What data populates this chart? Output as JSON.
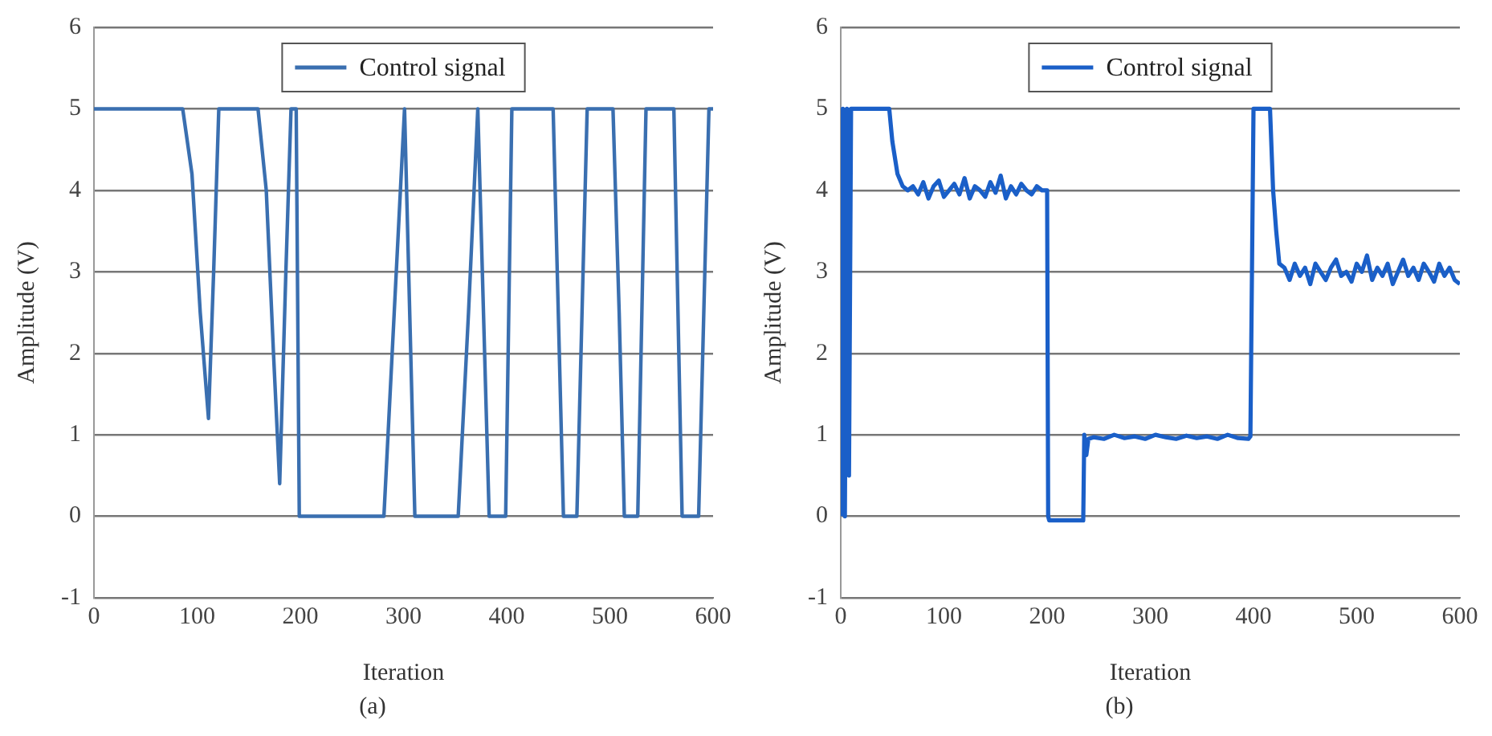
{
  "chart_data": [
    {
      "type": "line",
      "xlabel": "Iteration",
      "ylabel": "Amplitude (V)",
      "annotations": [
        "(a)"
      ],
      "x": [
        0,
        86,
        95,
        103,
        111,
        116,
        121,
        159,
        167,
        174,
        180,
        186,
        191,
        196,
        199,
        281,
        291,
        301,
        311,
        353,
        363,
        372,
        383,
        399,
        405,
        445,
        450,
        455,
        468,
        473,
        478,
        503,
        509,
        514,
        527,
        531,
        535,
        562,
        566,
        570,
        586,
        591,
        596,
        600
      ],
      "series": [
        {
          "name": "Control signal",
          "color": "#3a6fb0",
          "values": [
            5,
            5,
            4.2,
            2.5,
            1.2,
            3.0,
            5,
            5,
            4.0,
            2.0,
            0.4,
            3.0,
            5,
            5,
            0,
            0,
            2.5,
            5,
            0,
            0,
            2.5,
            5,
            0,
            0,
            5,
            5,
            2.5,
            0,
            0,
            2.5,
            5,
            5,
            2.5,
            0,
            0,
            2.5,
            5,
            5,
            2.5,
            0,
            0,
            2.5,
            5,
            5
          ]
        }
      ],
      "xlim": [
        0,
        600
      ],
      "xticks": [
        0,
        100,
        200,
        300,
        400,
        500,
        600
      ],
      "ylim": [
        -1,
        6
      ],
      "yticks": [
        -1,
        0,
        1,
        2,
        3,
        4,
        5,
        6
      ],
      "grid": "y",
      "legend": "top"
    },
    {
      "type": "line",
      "xlabel": "Iteration",
      "ylabel": "Amplitude (V)",
      "annotations": [
        "(b)"
      ],
      "x": [
        0,
        2,
        4,
        6,
        8,
        10,
        47,
        50,
        55,
        60,
        65,
        70,
        75,
        80,
        85,
        90,
        95,
        100,
        105,
        110,
        115,
        120,
        125,
        130,
        135,
        140,
        145,
        150,
        155,
        160,
        165,
        170,
        175,
        180,
        185,
        190,
        195,
        200,
        201,
        202,
        235,
        236,
        238,
        240,
        245,
        255,
        265,
        275,
        285,
        295,
        305,
        315,
        325,
        335,
        345,
        355,
        365,
        375,
        385,
        395,
        397,
        400,
        416,
        419,
        422,
        425,
        430,
        435,
        440,
        445,
        450,
        455,
        460,
        465,
        470,
        475,
        480,
        485,
        490,
        495,
        500,
        505,
        510,
        515,
        520,
        525,
        530,
        535,
        540,
        545,
        550,
        555,
        560,
        565,
        570,
        575,
        580,
        585,
        590,
        595,
        600
      ],
      "series": [
        {
          "name": "Control signal",
          "color": "#1a5fc8",
          "values": [
            0,
            5,
            0,
            5,
            0.5,
            5,
            5,
            4.6,
            4.2,
            4.05,
            4.0,
            4.05,
            3.95,
            4.1,
            3.9,
            4.05,
            4.12,
            3.92,
            4.0,
            4.08,
            3.95,
            4.15,
            3.9,
            4.05,
            4.0,
            3.92,
            4.1,
            3.97,
            4.18,
            3.9,
            4.05,
            3.95,
            4.08,
            4.0,
            3.95,
            4.05,
            4.0,
            4.0,
            0,
            -0.05,
            -0.05,
            1.0,
            0.75,
            0.95,
            0.97,
            0.95,
            1.0,
            0.96,
            0.98,
            0.95,
            1.0,
            0.97,
            0.95,
            0.99,
            0.96,
            0.98,
            0.95,
            1.0,
            0.96,
            0.95,
            0.98,
            5,
            5,
            4.0,
            3.5,
            3.1,
            3.05,
            2.9,
            3.1,
            2.95,
            3.05,
            2.85,
            3.1,
            3.0,
            2.9,
            3.05,
            3.15,
            2.95,
            3.0,
            2.88,
            3.1,
            3.0,
            3.2,
            2.9,
            3.05,
            2.95,
            3.1,
            2.85,
            3.0,
            3.15,
            2.95,
            3.05,
            2.9,
            3.1,
            3.0,
            2.88,
            3.1,
            2.95,
            3.05,
            2.9,
            2.85
          ]
        }
      ],
      "xlim": [
        0,
        600
      ],
      "xticks": [
        0,
        100,
        200,
        300,
        400,
        500,
        600
      ],
      "ylim": [
        -1,
        6
      ],
      "yticks": [
        -1,
        0,
        1,
        2,
        3,
        4,
        5,
        6
      ],
      "grid": "y",
      "legend": "top"
    }
  ]
}
